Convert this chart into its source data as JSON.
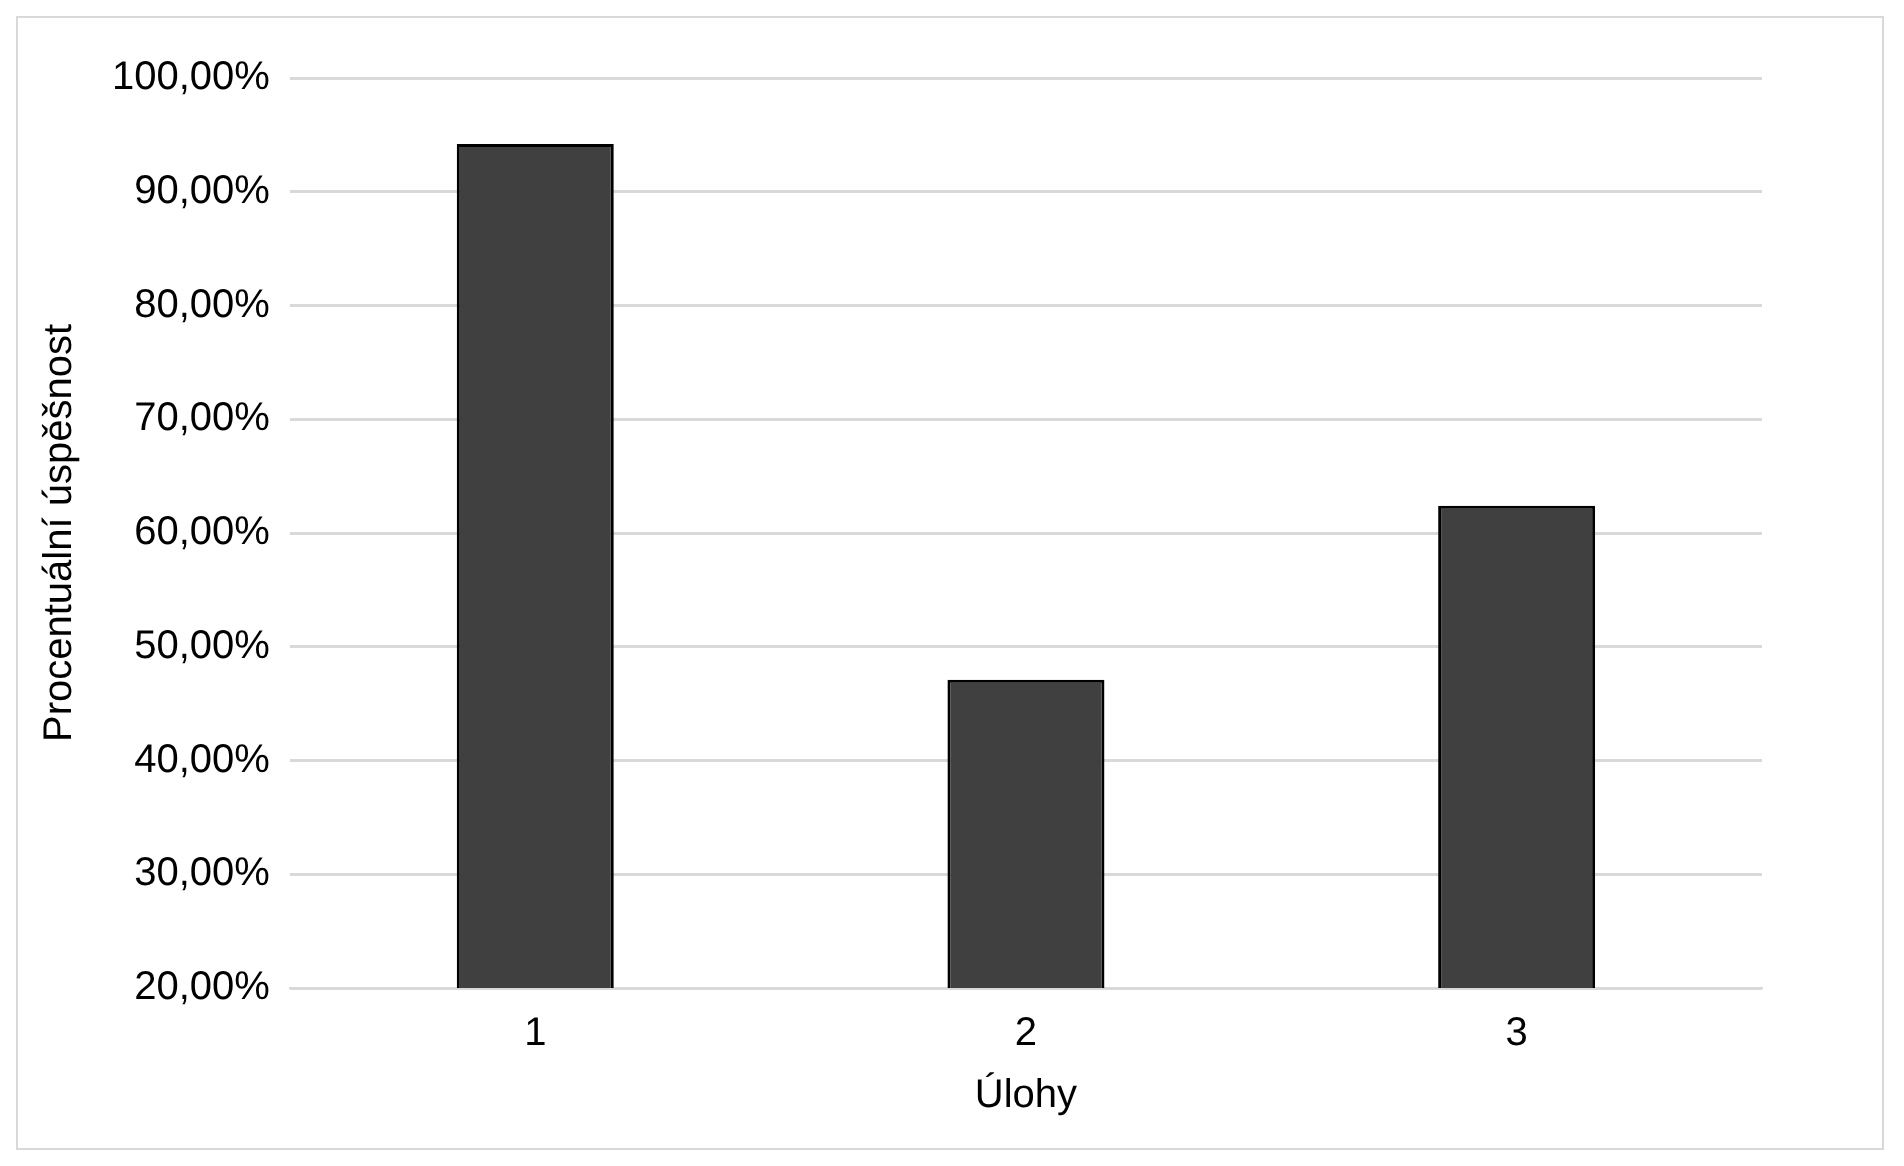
{
  "chart_data": {
    "type": "bar",
    "xlabel": "Úlohy",
    "ylabel": "Procentuální úspěšnost",
    "categories": [
      "1",
      "2",
      "3"
    ],
    "values": [
      94.2,
      47.1,
      62.4
    ],
    "color": "#404040",
    "ylim": [
      20,
      100
    ],
    "yticks": [
      {
        "value": 20,
        "label": "20,00%"
      },
      {
        "value": 30,
        "label": "30,00%"
      },
      {
        "value": 40,
        "label": "40,00%"
      },
      {
        "value": 50,
        "label": "50,00%"
      },
      {
        "value": 60,
        "label": "60,00%"
      },
      {
        "value": 70,
        "label": "70,00%"
      },
      {
        "value": 80,
        "label": "80,00%"
      },
      {
        "value": 90,
        "label": "90,00%"
      },
      {
        "value": 100,
        "label": "100,00%"
      }
    ],
    "grid": "y",
    "legend": false
  }
}
